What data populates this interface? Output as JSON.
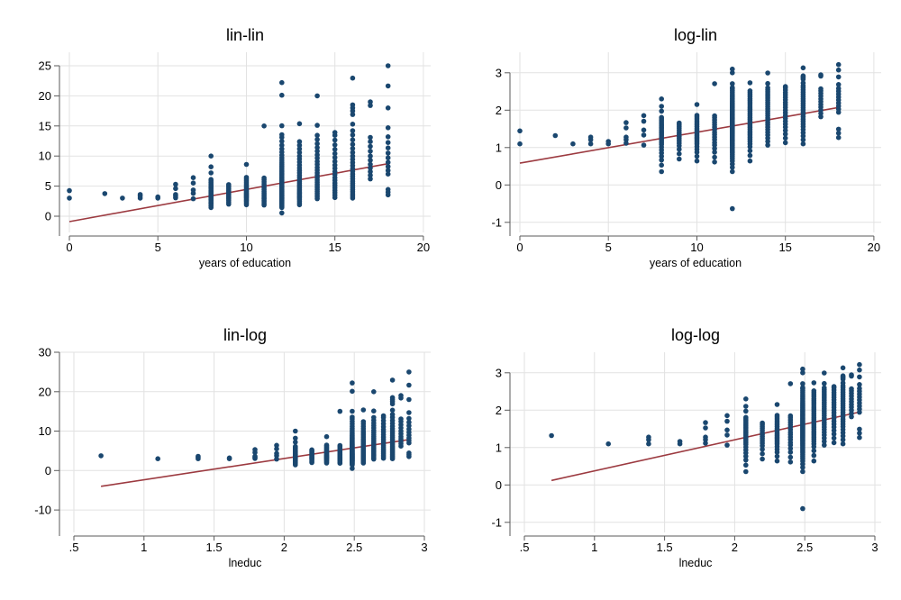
{
  "figure": {
    "background": "#ffffff",
    "description_title": "",
    "layout": "2x2 scatter panels"
  },
  "colors": {
    "marker": "#1a476f",
    "fit_line": "#9c3a40",
    "grid": "#e2e2e2",
    "axis": "#5a5a5a",
    "text": "#000000"
  },
  "dataset": {
    "x_variable": "educ",
    "y_variable": "wage",
    "wage_by_educ": {
      "0": [
        3.0,
        4.25
      ],
      "2": [
        3.75
      ],
      "3": [
        3.0
      ],
      "4": [
        3.0,
        3.35,
        3.6
      ],
      "5": [
        3.0,
        3.2
      ],
      "6": [
        3.05,
        3.35,
        3.6,
        4.6,
        5.3
      ],
      "7": [
        2.9,
        3.8,
        4.35,
        5.5,
        6.4
      ],
      "8": [
        1.43,
        1.7,
        1.95,
        2.15,
        2.35,
        2.55,
        2.75,
        2.95,
        3.1,
        3.25,
        3.4,
        3.55,
        3.7,
        3.85,
        4.0,
        4.15,
        4.3,
        4.5,
        4.7,
        4.9,
        5.1,
        5.35,
        5.6,
        5.85,
        6.1,
        7.2,
        8.2,
        10.0
      ],
      "9": [
        2.0,
        2.3,
        2.6,
        2.85,
        3.05,
        3.25,
        3.45,
        3.65,
        3.85,
        4.05,
        4.3,
        4.55,
        4.8,
        5.05,
        5.25
      ],
      "10": [
        1.9,
        2.15,
        2.4,
        2.6,
        2.8,
        3.0,
        3.15,
        3.3,
        3.45,
        3.6,
        3.75,
        3.9,
        4.1,
        4.3,
        4.5,
        4.75,
        5.0,
        5.25,
        5.55,
        5.85,
        6.15,
        6.45,
        8.6
      ],
      "11": [
        1.85,
        2.1,
        2.4,
        2.65,
        2.9,
        3.1,
        3.35,
        3.6,
        3.85,
        4.1,
        4.4,
        4.7,
        5.0,
        5.35,
        5.7,
        6.05,
        6.35,
        15.0
      ],
      "12": [
        0.53,
        1.43,
        1.6,
        1.75,
        1.9,
        2.02,
        2.13,
        2.24,
        2.35,
        2.45,
        2.55,
        2.65,
        2.75,
        2.85,
        2.95,
        3.04,
        3.13,
        3.22,
        3.31,
        3.4,
        3.49,
        3.58,
        3.67,
        3.76,
        3.85,
        3.95,
        4.05,
        4.15,
        4.25,
        4.35,
        4.46,
        4.57,
        4.68,
        4.8,
        4.92,
        5.04,
        5.17,
        5.3,
        5.44,
        5.58,
        5.73,
        5.88,
        6.04,
        6.21,
        6.38,
        6.56,
        6.75,
        6.95,
        7.16,
        7.38,
        7.61,
        7.85,
        8.1,
        8.37,
        8.65,
        8.95,
        9.3,
        9.7,
        10.15,
        10.65,
        11.2,
        11.8,
        12.45,
        13.1,
        13.55,
        15.03,
        20.1,
        22.2
      ],
      "13": [
        1.9,
        2.2,
        2.5,
        2.78,
        3.0,
        3.2,
        3.4,
        3.6,
        3.8,
        4.0,
        4.2,
        4.45,
        4.7,
        4.95,
        5.2,
        5.5,
        5.8,
        6.1,
        6.45,
        6.8,
        7.2,
        7.6,
        8.0,
        8.5,
        9.0,
        9.5,
        10.0,
        10.6,
        11.2,
        11.8,
        12.4,
        15.38
      ],
      "14": [
        2.9,
        3.2,
        3.5,
        3.8,
        4.1,
        4.4,
        4.7,
        5.0,
        5.3,
        5.65,
        6.0,
        6.4,
        6.8,
        7.2,
        7.65,
        8.1,
        8.6,
        9.1,
        9.65,
        10.2,
        10.8,
        11.4,
        12.05,
        12.75,
        13.45,
        15.1,
        20.0
      ],
      "15": [
        3.1,
        3.5,
        3.9,
        4.3,
        4.7,
        5.1,
        5.5,
        5.95,
        6.4,
        6.9,
        7.4,
        7.95,
        8.5,
        9.1,
        9.75,
        10.4,
        11.1,
        11.85,
        12.65,
        13.45,
        13.9
      ],
      "16": [
        3.0,
        3.35,
        3.7,
        4.05,
        4.4,
        4.75,
        5.1,
        5.45,
        5.8,
        6.2,
        6.6,
        7.0,
        7.45,
        7.9,
        8.4,
        8.9,
        9.45,
        10.0,
        10.6,
        11.25,
        11.95,
        12.7,
        13.5,
        14.2,
        15.3,
        16.9,
        17.5,
        18.0,
        18.5,
        22.95
      ],
      "17": [
        6.2,
        6.8,
        7.4,
        8.0,
        8.6,
        9.3,
        10.0,
        10.8,
        11.6,
        12.4,
        13.1,
        18.4,
        19.0
      ],
      "18": [
        3.55,
        4.0,
        4.45,
        7.0,
        7.6,
        8.25,
        8.95,
        9.7,
        10.5,
        11.35,
        12.25,
        13.2,
        14.7,
        18.0,
        21.65,
        25.0
      ]
    }
  },
  "chart_data": [
    {
      "type": "scatter",
      "title": "lin-lin",
      "xlabel": "years of education",
      "ylabel": "",
      "x_var": "educ",
      "y_var": "wage",
      "xlim": [
        -0.56,
        20.41
      ],
      "ylim": [
        -2.7,
        27.25
      ],
      "xticks": [
        0,
        5,
        10,
        15,
        20
      ],
      "xtick_labels": [
        "0",
        "5",
        "10",
        "15",
        "20"
      ],
      "yticks": [
        0,
        5,
        10,
        15,
        20,
        25
      ],
      "ytick_labels": [
        "0",
        "5",
        "10",
        "15",
        "20",
        "25"
      ],
      "grid": true,
      "legend": "none",
      "fit_line": {
        "x1": 0,
        "y1": -0.9,
        "x2": 18,
        "y2": 8.73
      }
    },
    {
      "type": "scatter",
      "title": "log-lin",
      "xlabel": "years of education",
      "ylabel": "",
      "x_var": "educ",
      "y_var": "lwage",
      "xlim": [
        -0.56,
        20.41
      ],
      "ylim": [
        -1.27,
        3.55
      ],
      "xticks": [
        0,
        5,
        10,
        15,
        20
      ],
      "xtick_labels": [
        "0",
        "5",
        "10",
        "15",
        "20"
      ],
      "yticks": [
        -1,
        0,
        1,
        2,
        3
      ],
      "ytick_labels": [
        "-1",
        "0",
        "1",
        "2",
        "3"
      ],
      "grid": true,
      "legend": "none",
      "fit_line": {
        "x1": 0,
        "y1": 0.584,
        "x2": 18,
        "y2": 2.073
      }
    },
    {
      "type": "scatter",
      "title": "lin-log",
      "xlabel": "lneduc",
      "ylabel": "",
      "x_var": "lneduc",
      "y_var": "wage",
      "xlim": [
        0.397,
        3.045
      ],
      "ylim": [
        -15.7,
        30.0
      ],
      "xticks": [
        0.5,
        1,
        1.5,
        2,
        2.5,
        3
      ],
      "xtick_labels": [
        ".5",
        "1",
        "1.5",
        "2",
        "2.5",
        "3"
      ],
      "yticks": [
        -10,
        0,
        10,
        20,
        30
      ],
      "ytick_labels": [
        "-10",
        "0",
        "10",
        "20",
        "30"
      ],
      "grid": true,
      "legend": "none",
      "fit_line": {
        "x1": 0.693,
        "y1": -4.0,
        "x2": 2.89,
        "y2": 7.85
      }
    },
    {
      "type": "scatter",
      "title": "log-log",
      "xlabel": "lneduc",
      "ylabel": "",
      "x_var": "lneduc",
      "y_var": "lwage",
      "xlim": [
        0.397,
        3.045
      ],
      "ylim": [
        -1.27,
        3.55
      ],
      "xticks": [
        0.5,
        1,
        1.5,
        2,
        2.5,
        3
      ],
      "xtick_labels": [
        ".5",
        "1",
        "1.5",
        "2",
        "2.5",
        "3"
      ],
      "yticks": [
        -1,
        0,
        1,
        2,
        3
      ],
      "ytick_labels": [
        "-1",
        "0",
        "1",
        "2",
        "3"
      ],
      "grid": true,
      "legend": "none",
      "fit_line": {
        "x1": 0.693,
        "y1": 0.12,
        "x2": 2.89,
        "y2": 1.95
      }
    }
  ]
}
